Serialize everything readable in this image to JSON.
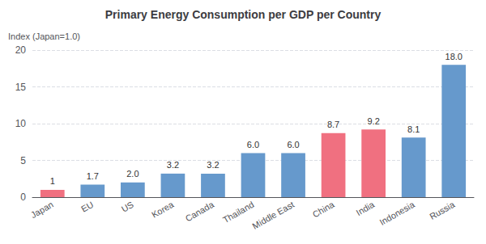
{
  "chart_data": {
    "type": "bar",
    "title": "Primary Energy Consumption per GDP per Country",
    "ylabel": "Index (Japan=1.0)",
    "categories": [
      "Japan",
      "EU",
      "US",
      "Korea",
      "Canada",
      "Thailand",
      "Middle East",
      "China",
      "India",
      "Indonesia",
      "Russia"
    ],
    "values": [
      1.0,
      1.7,
      2.0,
      3.2,
      3.2,
      6.0,
      6.0,
      8.7,
      9.2,
      8.1,
      18.0
    ],
    "value_labels": [
      "1",
      "1.7",
      "2.0",
      "3.2",
      "3.2",
      "6.0",
      "6.0",
      "8.7",
      "9.2",
      "8.1",
      "18.0"
    ],
    "colors": [
      "#F07080",
      "#6699CC",
      "#6699CC",
      "#6699CC",
      "#6699CC",
      "#6699CC",
      "#6699CC",
      "#F07080",
      "#F07080",
      "#6699CC",
      "#6699CC"
    ],
    "ylim": [
      0,
      20
    ],
    "yticks": [
      0,
      5,
      10,
      15,
      20
    ],
    "grid": true,
    "data_labels": true
  }
}
